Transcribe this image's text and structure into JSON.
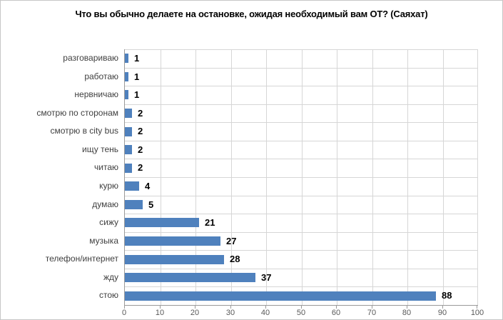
{
  "title": "Что вы обычно делаете на остановке, ожидая необходимый вам ОТ? (Саяхат)",
  "colors": {
    "background": "#ffffff",
    "chart_border": "#c6c6c6",
    "bar": "#4f81bd",
    "gridline": "#d6d6d6",
    "axis_line": "#9a9a9a",
    "title_text": "#000000",
    "category_text": "#3f3f3f",
    "value_text": "#000000",
    "tick_text": "#595959"
  },
  "chart_data": {
    "type": "bar",
    "orientation": "horizontal",
    "title": "Что вы обычно делаете на остановке, ожидая необходимый вам ОТ? (Саяхат)",
    "categories": [
      "разговариваю",
      "работаю",
      "нервничаю",
      "смотрю по сторонам",
      "смотрю в city bus",
      "ищу тень",
      "читаю",
      "курю",
      "думаю",
      "сижу",
      "музыка",
      "телефон/интернет",
      "жду",
      "стою"
    ],
    "values": [
      1,
      1,
      1,
      2,
      2,
      2,
      2,
      4,
      5,
      21,
      27,
      28,
      37,
      88
    ],
    "xlabel": "",
    "ylabel": "",
    "xlim": [
      0,
      100
    ],
    "xticks": [
      0,
      10,
      20,
      30,
      40,
      50,
      60,
      70,
      80,
      90,
      100
    ],
    "grid": true,
    "legend": false,
    "value_labels": true
  }
}
